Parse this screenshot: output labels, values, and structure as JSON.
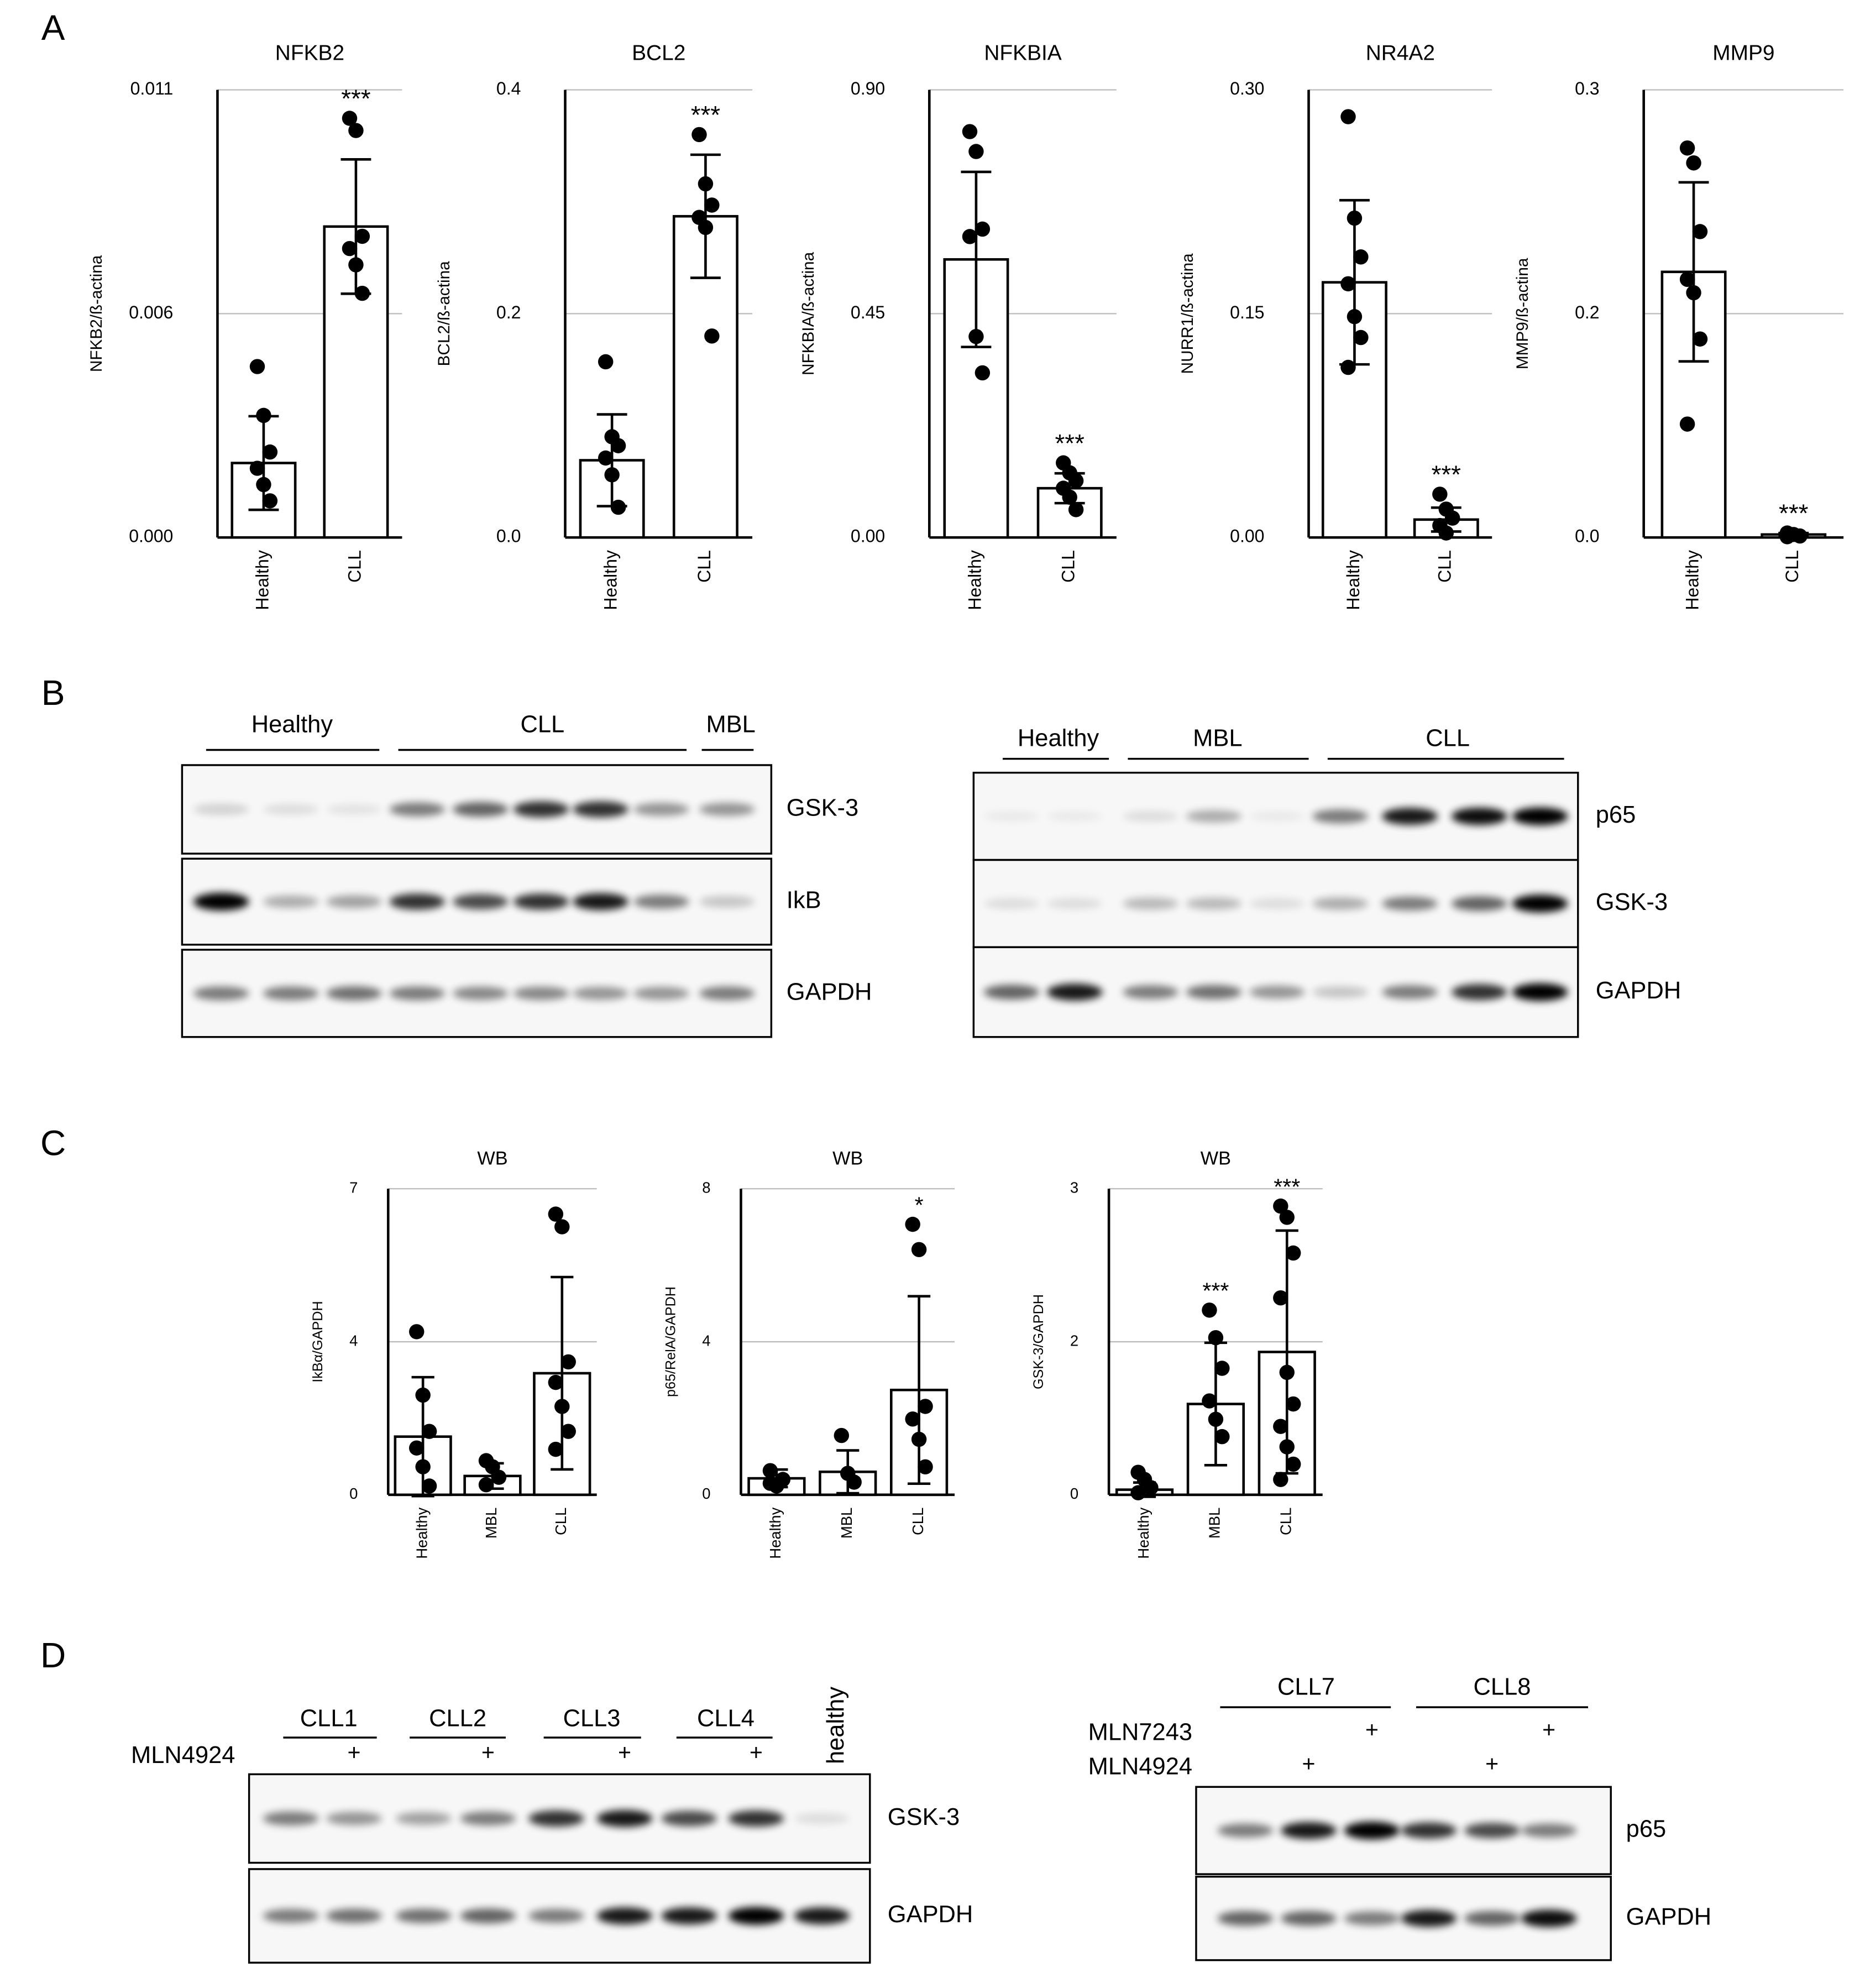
{
  "panels": [
    "A",
    "B",
    "C",
    "D"
  ],
  "chart_data": [
    {
      "type": "bar",
      "title": "NFKB2",
      "ylabel": "NFKB2/ß-actina",
      "categories": [
        "Healthy",
        "CLL"
      ],
      "values": [
        0.00183,
        0.00764
      ],
      "errors": [
        0.00115,
        0.00165
      ],
      "points": [
        [
          0.0042,
          0.003,
          0.0021,
          0.0017,
          0.0013,
          0.0009
        ],
        [
          0.0103,
          0.01,
          0.0074,
          0.0071,
          0.0067,
          0.006
        ]
      ],
      "annotations": [
        {
          "category": "CLL",
          "text": "***"
        }
      ],
      "ylim": [
        0,
        0.011
      ],
      "yticks": [
        {
          "value": 0,
          "label": "0.000"
        },
        {
          "value": 0.0055,
          "label": "0.006"
        },
        0.011
      ],
      "grid": true,
      "color": "#ffffff"
    },
    {
      "type": "bar",
      "title": "BCL2",
      "ylabel": "BCL2/ß-actina",
      "categories": [
        "Healthy",
        "CLL"
      ],
      "values": [
        0.069,
        0.287
      ],
      "errors": [
        0.041,
        0.055
      ],
      "points": [
        [
          0.157,
          0.09,
          0.082,
          0.071,
          0.056,
          0.027
        ],
        [
          0.36,
          0.316,
          0.297,
          0.286,
          0.277,
          0.18
        ]
      ],
      "annotations": [
        {
          "category": "CLL",
          "text": "***"
        }
      ],
      "ylim": [
        0,
        0.4
      ],
      "yticks": [
        {
          "value": 0,
          "label": "0.0"
        },
        0.2,
        0.4
      ],
      "grid": true,
      "color": "#ffffff"
    },
    {
      "type": "bar",
      "title": "NFKBIA",
      "ylabel": "NFKBIA/ß-actina",
      "categories": [
        "Healthy",
        "CLL"
      ],
      "values": [
        0.559,
        0.099
      ],
      "errors": [
        0.176,
        0.03
      ],
      "points": [
        [
          0.816,
          0.776,
          0.62,
          0.605,
          0.404,
          0.331
        ],
        [
          0.15,
          0.13,
          0.114,
          0.099,
          0.081,
          0.056
        ]
      ],
      "annotations": [
        {
          "category": "CLL",
          "text": "***"
        }
      ],
      "ylim": [
        0,
        0.9
      ],
      "yticks": [
        {
          "value": 0,
          "label": "0.00"
        },
        0.45,
        {
          "value": 0.9,
          "label": "0.90"
        }
      ],
      "grid": true,
      "color": "#ffffff"
    },
    {
      "type": "bar",
      "title": "NR4A2",
      "ylabel": "NURR1/ß-actina",
      "categories": [
        "Healthy",
        "CLL"
      ],
      "values": [
        0.171,
        0.012
      ],
      "errors": [
        0.055,
        0.008
      ],
      "points": [
        [
          0.282,
          0.214,
          0.188,
          0.17,
          0.148,
          0.134,
          0.114
        ],
        [
          0.029,
          0.019,
          0.013,
          0.008,
          0.003
        ]
      ],
      "annotations": [
        {
          "category": "CLL",
          "text": "***"
        }
      ],
      "ylim": [
        0,
        0.3
      ],
      "yticks": [
        {
          "value": 0,
          "label": "0.00"
        },
        0.15,
        {
          "value": 0.3,
          "label": "0.30"
        }
      ],
      "grid": true,
      "color": "#ffffff"
    },
    {
      "type": "bar",
      "title": "MMP9",
      "ylabel": "MMP9/ß-actina",
      "categories": [
        "Healthy",
        "CLL"
      ],
      "values": [
        0.178,
        0.002
      ],
      "errors": [
        0.06,
        0.001
      ],
      "points": [
        [
          0.261,
          0.251,
          0.205,
          0.173,
          0.164,
          0.133,
          0.076
        ],
        [
          0.003,
          0.002,
          0.001,
          0.0005
        ]
      ],
      "annotations": [
        {
          "category": "CLL",
          "text": "***"
        }
      ],
      "ylim": [
        0,
        0.3
      ],
      "yticks": [
        {
          "value": 0,
          "label": "0.0"
        },
        {
          "value": 0.15,
          "label": "0.2"
        },
        0.3
      ],
      "grid": true,
      "color": "#ffffff"
    },
    {
      "type": "bar",
      "title": "WB",
      "ylabel": "IkBα/GAPDH",
      "categories": [
        "Healthy",
        "MBL",
        "CLL"
      ],
      "values": [
        1.33,
        0.43,
        2.78
      ],
      "errors": [
        1.36,
        0.29,
        2.2
      ],
      "points": [
        [
          3.73,
          2.28,
          1.45,
          1.07,
          0.64,
          0.2
        ],
        [
          0.78,
          0.64,
          0.4,
          0.23
        ],
        [
          6.42,
          6.13,
          3.04,
          2.57,
          2.02,
          1.45,
          1.04
        ]
      ],
      "annotations": [],
      "ylim": [
        0,
        7
      ],
      "yticks": [
        0,
        {
          "value": 3.5,
          "label": "4"
        },
        7
      ],
      "grid": true,
      "color": "#ffffff"
    },
    {
      "type": "bar",
      "title": "WB",
      "ylabel": "p65/RelA/GAPDH",
      "categories": [
        "Healthy",
        "MBL",
        "CLL"
      ],
      "values": [
        0.43,
        0.6,
        2.74
      ],
      "errors": [
        0.23,
        0.56,
        2.45
      ],
      "points": [
        [
          0.3,
          0.23,
          0.4,
          0.63
        ],
        [
          1.55,
          0.56,
          0.33
        ],
        [
          7.07,
          6.41,
          2.31,
          1.98,
          1.45,
          0.73
        ]
      ],
      "annotations": [
        {
          "category": "CLL",
          "text": "*"
        }
      ],
      "ylim": [
        0,
        8
      ],
      "yticks": [
        0,
        4,
        8
      ],
      "grid": true,
      "color": "#ffffff"
    },
    {
      "type": "bar",
      "title": "WB",
      "ylabel": "GSK-3/GAPDH",
      "categories": [
        "Healthy",
        "MBL",
        "CLL"
      ],
      "values": [
        0.05,
        0.89,
        1.4
      ],
      "errors": [
        0.07,
        0.6,
        1.19
      ],
      "points": [
        [
          0.22,
          0.15,
          0.07,
          0.02
        ],
        [
          1.81,
          1.54,
          1.24,
          0.92,
          0.74,
          0.57
        ],
        [
          2.83,
          2.72,
          2.37,
          1.93,
          1.2,
          0.89,
          0.67,
          0.47,
          0.3,
          0.15
        ]
      ],
      "annotations": [
        {
          "category": "MBL",
          "text": "***"
        },
        {
          "category": "CLL",
          "text": "***"
        }
      ],
      "ylim": [
        0,
        3
      ],
      "yticks": [
        0,
        {
          "value": 1.5,
          "label": "2"
        },
        3
      ],
      "grid": true,
      "color": "#ffffff"
    }
  ],
  "blots": [
    {
      "groups": [
        "Healthy",
        "CLL",
        "MBL"
      ],
      "rows": [
        "GSK-3",
        "IkB",
        "GAPDH"
      ]
    },
    {
      "groups": [
        "Healthy",
        "MBL",
        "CLL"
      ],
      "rows": [
        "p65",
        "GSK-3",
        "GAPDH"
      ]
    },
    {
      "groups": [
        "CLL1",
        "CLL2",
        "CLL3",
        "CLL4",
        "healthy"
      ],
      "treatments": [
        {
          "name": "MLN4924",
          "marks": [
            null,
            "+",
            null,
            "+",
            null,
            "+",
            null,
            "+",
            null
          ]
        }
      ],
      "rows": [
        "GSK-3",
        "GAPDH"
      ]
    },
    {
      "groups": [
        "CLL7",
        "CLL8"
      ],
      "treatments": [
        {
          "name": "MLN7243",
          "marks": [
            null,
            null,
            "+",
            null,
            null,
            "+"
          ]
        },
        {
          "name": "MLN4924",
          "marks": [
            null,
            "+",
            null,
            null,
            "+",
            null
          ]
        }
      ],
      "rows": [
        "p65",
        "GAPDH"
      ]
    }
  ]
}
